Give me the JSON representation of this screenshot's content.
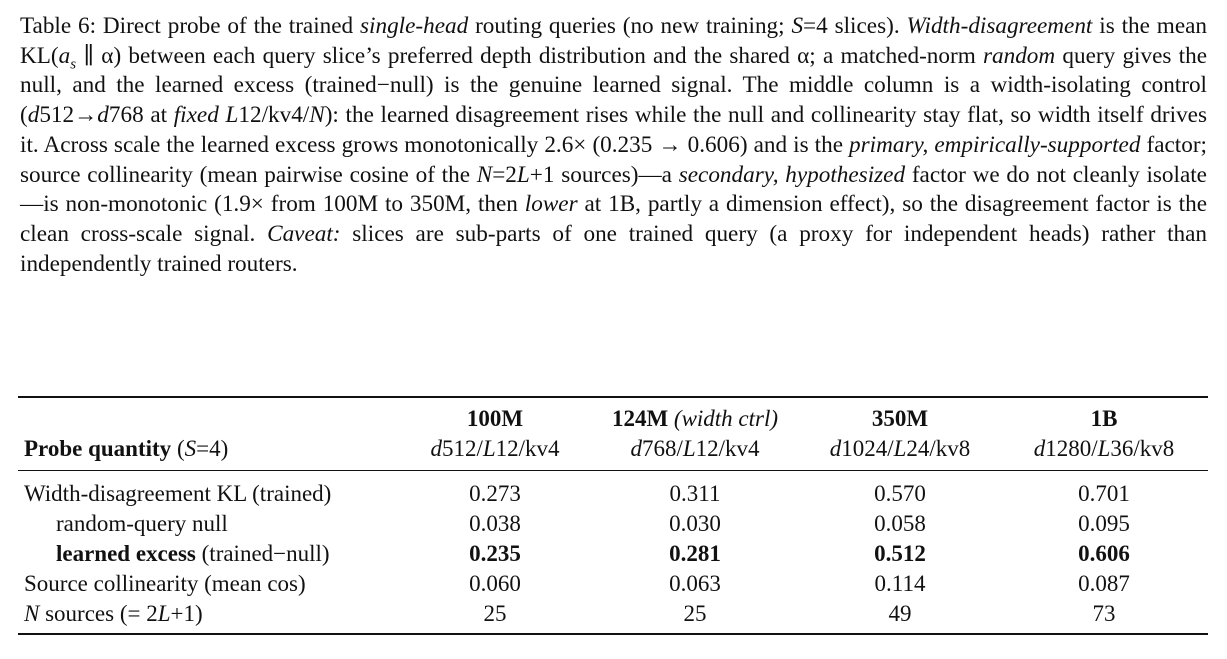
{
  "caption": [
    "Table 6: Direct probe of the trained ",
    "single-head",
    " routing queries (no new training; ",
    "S",
    "=4 slices). ",
    "Width-disagreement",
    " is the mean KL(",
    "a",
    "s",
    " ∥ α) between each query slice’s preferred depth distribution and the shared α; a matched-norm ",
    "random",
    " query gives the null, and the learned excess (trained−null) is the genuine learned signal. The middle column is a width-isolating control (",
    "d",
    "512→",
    "d",
    "768 at ",
    "fixed",
    "L",
    "12/kv4/",
    "N",
    "): the learned disagreement rises while the null and collinearity stay flat, so width itself drives it. Across scale the learned excess grows monotonically 2.6× (0.235 → 0.606) and is the ",
    "primary, empirically-supported",
    " factor; source collinearity (mean pairwise cosine of the ",
    "N",
    "=2",
    "L",
    "+1 sources)—a ",
    "secondary, hypothesized",
    " factor we do not cleanly isolate—is non-monotonic (1.9× from 100M to 350M, then ",
    "lower",
    " at 1B, partly a dimension effect), so the disagreement factor is the clean cross-scale signal. ",
    "Caveat:",
    " slices are sub-parts of one trained query (a proxy for independent heads) rather than independently trained routers."
  ],
  "table": {
    "stub_header": [
      "Probe quantity",
      " (",
      "S",
      "=4)"
    ],
    "columns": [
      {
        "name": "100M",
        "config": [
          "d",
          "512/",
          "L",
          "12/kv4"
        ]
      },
      {
        "name": "124M",
        "note": "(width ctrl)",
        "config": [
          "d",
          "768/",
          "L",
          "12/kv4"
        ]
      },
      {
        "name": "350M",
        "config": [
          "d",
          "1024/",
          "L",
          "24/kv8"
        ]
      },
      {
        "name": "1B",
        "config": [
          "d",
          "1280/",
          "L",
          "36/kv8"
        ]
      }
    ],
    "rows": [
      {
        "label": [
          "Width-disagreement KL (trained)"
        ],
        "values": [
          "0.273",
          "0.311",
          "0.570",
          "0.701"
        ]
      },
      {
        "label": [
          "random-query null"
        ],
        "values": [
          "0.038",
          "0.030",
          "0.058",
          "0.095"
        ]
      },
      {
        "label": [
          "learned excess",
          " (trained−null)"
        ],
        "values": [
          "0.235",
          "0.281",
          "0.512",
          "0.606"
        ]
      },
      {
        "label": [
          "Source collinearity (mean cos)"
        ],
        "values": [
          "0.060",
          "0.063",
          "0.114",
          "0.087"
        ]
      },
      {
        "label": [
          "N",
          " sources (= 2",
          "L",
          "+1)"
        ],
        "values": [
          "25",
          "25",
          "49",
          "73"
        ]
      }
    ]
  }
}
